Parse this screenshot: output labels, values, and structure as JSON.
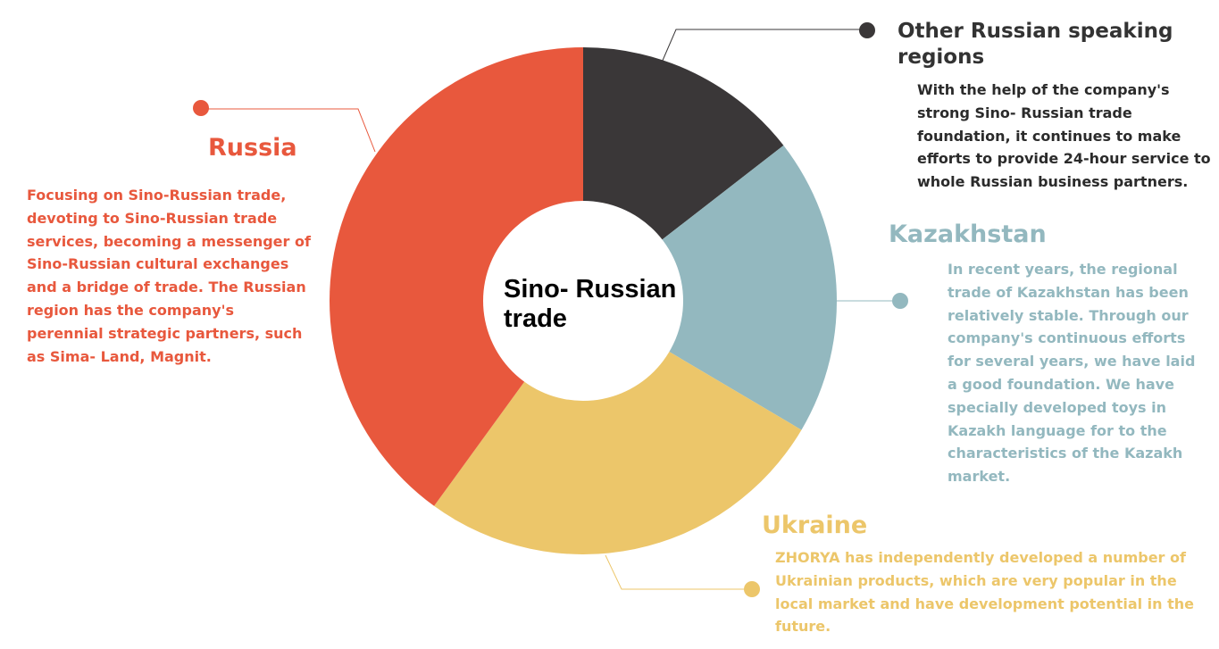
{
  "center": {
    "line1": "Sino- Russian",
    "line2": "trade"
  },
  "segments": [
    {
      "key": "other",
      "title": "Other Russian speaking regions",
      "description": "With the help of the company's strong Sino- Russian trade foundation, it continues to make efforts to provide 24-hour service to whole Russian business partners.",
      "color": "#3a3738",
      "desc_color": "#2b2b2b",
      "share": 0.145
    },
    {
      "key": "kazakhstan",
      "title": "Kazakhstan",
      "description": "In recent years, the regional trade of Kazakhstan has been relatively stable. Through our company's continuous efforts for several years, we have laid a good foundation. We have specially developed toys in Kazakh language for to the characteristics of the Kazakh market.",
      "color": "#93b8bf",
      "share": 0.19
    },
    {
      "key": "ukraine",
      "title": "Ukraine",
      "description": "ZHORYA has independently developed a number of Ukrainian products, which are very popular in the local market and have development potential in the future.",
      "color": "#ecc66a",
      "share": 0.265
    },
    {
      "key": "russia",
      "title": "Russia",
      "description": "Focusing on Sino-Russian trade, devoting to Sino-Russian trade services, becoming a messenger of Sino-Russian cultural exchanges and a bridge of trade. The Russian region has the company's perennial strategic partners, such as Sima- Land, Magnit.",
      "color": "#e8583d",
      "share": 0.4
    }
  ]
}
